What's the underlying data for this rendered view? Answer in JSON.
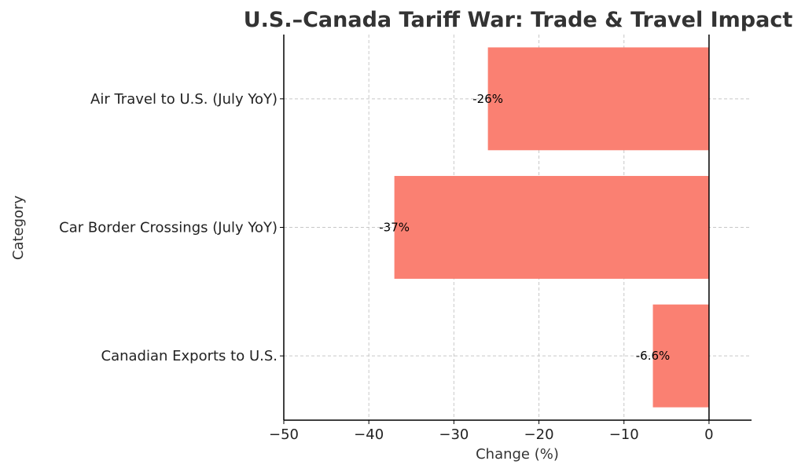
{
  "chart_data": {
    "type": "bar",
    "orientation": "horizontal",
    "title": "U.S.–Canada Tariff War: Trade & Travel Impact",
    "xlabel": "Change (%)",
    "ylabel": "Category",
    "categories": [
      "Canadian Exports to U.S.",
      "Car Border Crossings (July YoY)",
      "Air Travel to U.S. (July YoY)"
    ],
    "values": [
      -6.6,
      -37,
      -26
    ],
    "data_labels": [
      "-6.6%",
      "-37%",
      "-26%"
    ],
    "xlim": [
      -50,
      5
    ],
    "xticks": [
      -50,
      -40,
      -30,
      -20,
      -10,
      0
    ],
    "xtick_labels": [
      "−50",
      "−40",
      "−30",
      "−20",
      "−10",
      "0"
    ],
    "grid": true,
    "bar_color": "#fa8072"
  }
}
